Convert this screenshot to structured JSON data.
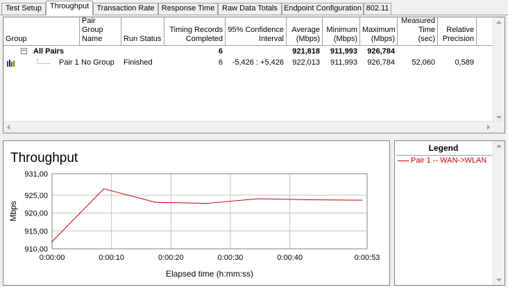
{
  "tabs": [
    {
      "label": "Test Setup",
      "active": false
    },
    {
      "label": "Throughput",
      "active": true
    },
    {
      "label": "Transaction Rate",
      "active": false
    },
    {
      "label": "Response Time",
      "active": false
    },
    {
      "label": "Raw Data Totals",
      "active": false
    },
    {
      "label": "Endpoint Configuration",
      "active": false
    },
    {
      "label": "802.11",
      "active": false
    }
  ],
  "table": {
    "headers": {
      "group": "Group",
      "pair_group_name": "Pair Group Name",
      "run_status": "Run Status",
      "timing_records": "Timing Records Completed",
      "confidence": "95% Confidence Interval",
      "average": "Average (Mbps)",
      "minimum": "Minimum (Mbps)",
      "maximum": "Maximum (Mbps)",
      "measured_time": "Measured Time (sec)",
      "relative_precision": "Relative Precision"
    },
    "all_pairs": {
      "expander": "−",
      "label": "All Pairs",
      "timing_records": "6",
      "average": "921,818",
      "minimum": "911,993",
      "maximum": "926,784"
    },
    "pair1": {
      "label": "Pair 1",
      "pair_group_name": "No Group",
      "run_status": "Finished",
      "timing_records": "6",
      "confidence": "-5,426 : +5,426",
      "average": "922,013",
      "minimum": "911,993",
      "maximum": "926,784",
      "measured_time": "52,060",
      "relative_precision": "0,589"
    }
  },
  "chart_data": {
    "type": "line",
    "title": "Throughput",
    "xlabel": "Elapsed time (h:mm:ss)",
    "ylabel": "Mbps",
    "ylim": [
      910,
      931
    ],
    "yticks": [
      "931,00",
      "925,00",
      "920,00",
      "915,00",
      "910,00"
    ],
    "ytick_values": [
      931,
      925,
      920,
      915,
      910
    ],
    "xticks": [
      "0:00:00",
      "0:00:10",
      "0:00:20",
      "0:00:30",
      "0:00:40",
      "0:00:53"
    ],
    "xtick_values": [
      0,
      10,
      20,
      30,
      40,
      53
    ],
    "xlim": [
      0,
      53
    ],
    "grid": true,
    "series": [
      {
        "name": "Pair 1 -- WAN->WLAN",
        "color": "#c00000",
        "x": [
          0,
          8.7,
          17.4,
          26,
          34.7,
          43.3,
          52.1
        ],
        "y": [
          911.99,
          926.78,
          923.0,
          922.7,
          924.0,
          923.7,
          923.6
        ]
      }
    ]
  },
  "legend": {
    "title": "Legend",
    "entries": [
      {
        "label": "Pair 1 -- WAN->WLAN",
        "color": "#c00000"
      }
    ]
  },
  "colors": {
    "series": "#c00000",
    "grid": "#c0c0c0",
    "pane_border": "#828282"
  }
}
